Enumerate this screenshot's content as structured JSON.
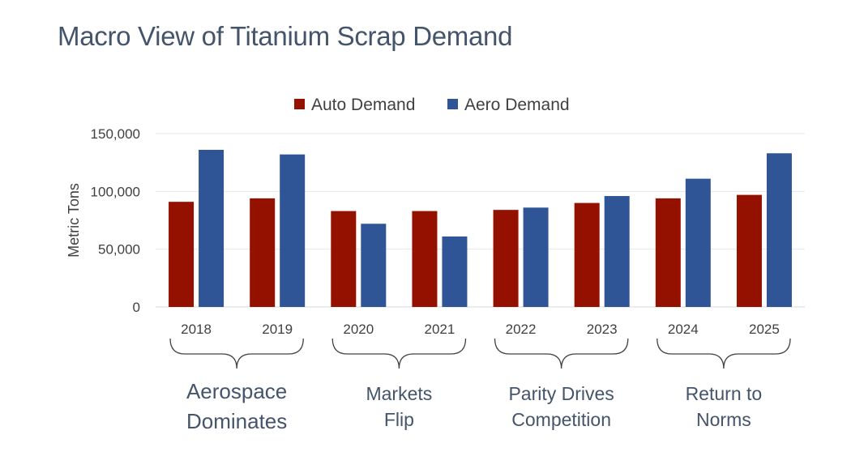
{
  "slide": {
    "title": "Macro View of Titanium Scrap Demand"
  },
  "chart_data": {
    "type": "bar",
    "title": "",
    "xlabel": "",
    "ylabel": "Metric Tons",
    "ylim": [
      0,
      150000
    ],
    "yticks": [
      0,
      50000,
      100000,
      150000
    ],
    "ytick_labels": [
      "0",
      "50,000",
      "100,000",
      "150,000"
    ],
    "grid": true,
    "legend": "top-center",
    "categories": [
      "2018",
      "2019",
      "2020",
      "2021",
      "2022",
      "2023",
      "2024",
      "2025"
    ],
    "series": [
      {
        "name": "Auto Demand",
        "color": "#941100",
        "values": [
          91000,
          94000,
          83000,
          83000,
          84000,
          90000,
          94000,
          97000
        ]
      },
      {
        "name": "Aero Demand",
        "color": "#2f5597",
        "values": [
          136000,
          132000,
          72000,
          61000,
          86000,
          96000,
          111000,
          133000
        ]
      }
    ]
  },
  "groups": [
    {
      "lines": [
        "Aerospace",
        "Dominates"
      ],
      "emphasis": true,
      "from": 0,
      "to": 1
    },
    {
      "lines": [
        "Markets",
        "Flip"
      ],
      "emphasis": false,
      "from": 2,
      "to": 3
    },
    {
      "lines": [
        "Parity Drives",
        "Competition"
      ],
      "emphasis": false,
      "from": 4,
      "to": 5
    },
    {
      "lines": [
        "Return to",
        "Norms"
      ],
      "emphasis": false,
      "from": 6,
      "to": 7
    }
  ]
}
